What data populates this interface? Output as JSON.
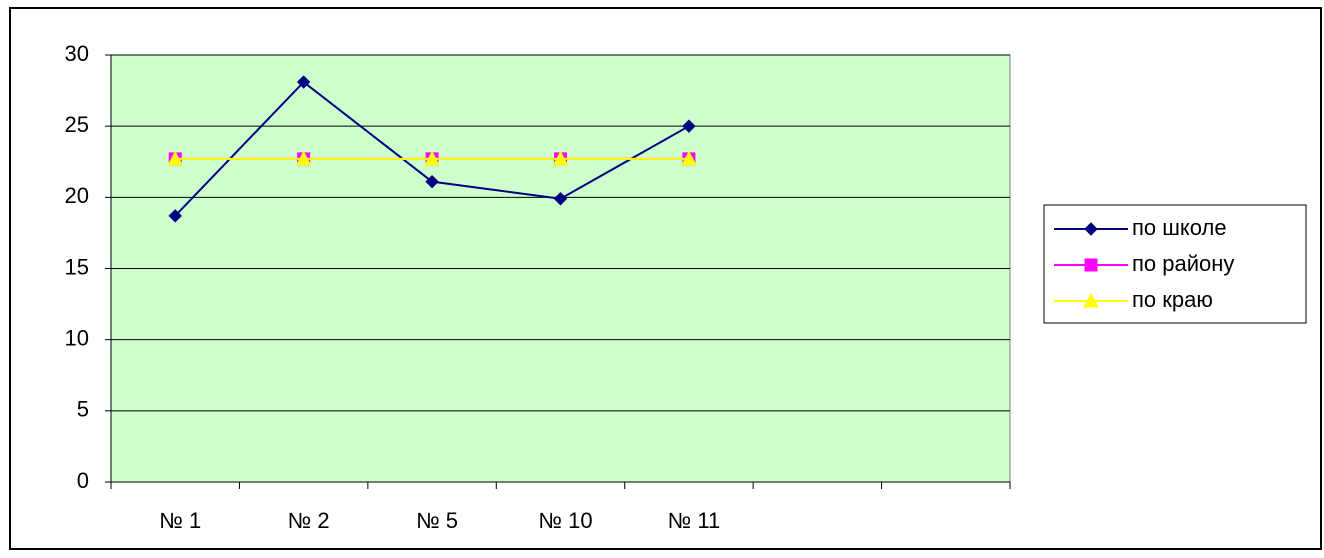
{
  "chart_data": {
    "type": "line",
    "categories": [
      "№ 1",
      "№ 2",
      "№ 5",
      "№ 10",
      "№ 11",
      null,
      null
    ],
    "series": [
      {
        "name": "по школе",
        "color": "#000080",
        "marker": "diamond",
        "values": [
          18.7,
          28.1,
          21.1,
          19.9,
          25,
          null,
          null
        ]
      },
      {
        "name": "по району",
        "color": "#ff00ff",
        "marker": "square",
        "values": [
          22.7,
          22.7,
          22.7,
          22.7,
          22.7,
          null,
          null
        ]
      },
      {
        "name": "по краю",
        "color": "#ffff00",
        "marker": "triangle",
        "values": [
          22.7,
          22.7,
          22.7,
          22.7,
          22.7,
          null,
          null
        ]
      }
    ],
    "ylim": [
      0,
      30
    ],
    "yticks": [
      0,
      5,
      10,
      15,
      20,
      25,
      30
    ],
    "grid": true,
    "legend": "right",
    "plot_background": "#ccffcc"
  }
}
